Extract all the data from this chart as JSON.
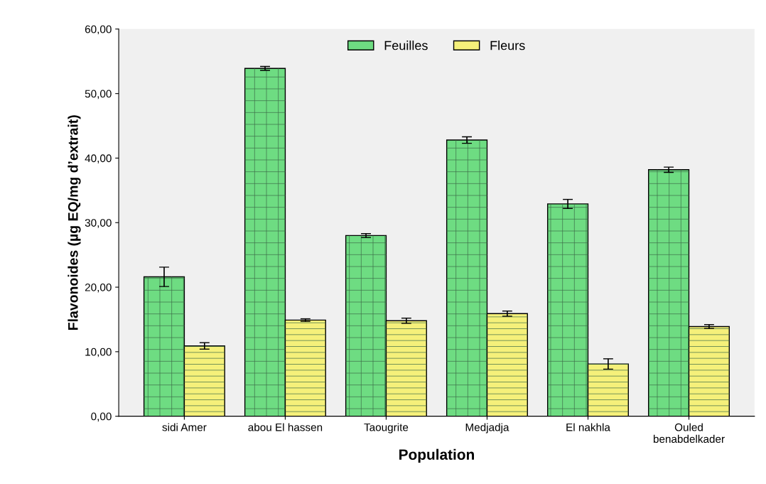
{
  "chart_data": {
    "type": "bar",
    "xlabel": "Population",
    "ylabel": "Flavonoides (µg EQ/mg d’extrait)",
    "categories": [
      "sidi Amer",
      "abou El hassen",
      "Taougrite",
      "Medjadja",
      "El nakhla",
      "Ouled\nbenabdelkader"
    ],
    "series": [
      {
        "name": "Feuilles",
        "color": "#6edc82",
        "values": [
          21.6,
          53.9,
          28.0,
          42.8,
          32.9,
          38.2
        ],
        "errors": [
          1.5,
          0.3,
          0.3,
          0.5,
          0.7,
          0.4
        ]
      },
      {
        "name": "Fleurs",
        "color": "#f5f07a",
        "values": [
          10.9,
          14.9,
          14.8,
          15.9,
          8.1,
          13.9
        ],
        "errors": [
          0.5,
          0.2,
          0.4,
          0.4,
          0.8,
          0.3
        ]
      }
    ],
    "ylim": [
      0,
      60
    ],
    "yticks": [
      {
        "value": 0,
        "label": "0,00"
      },
      {
        "value": 10,
        "label": "10,00"
      },
      {
        "value": 20,
        "label": "20,00"
      },
      {
        "value": 30,
        "label": "30,00"
      },
      {
        "value": 40,
        "label": "40,00"
      },
      {
        "value": 50,
        "label": "50,00"
      },
      {
        "value": 60,
        "label": "60,00"
      }
    ],
    "grid": false,
    "legend": "top"
  }
}
